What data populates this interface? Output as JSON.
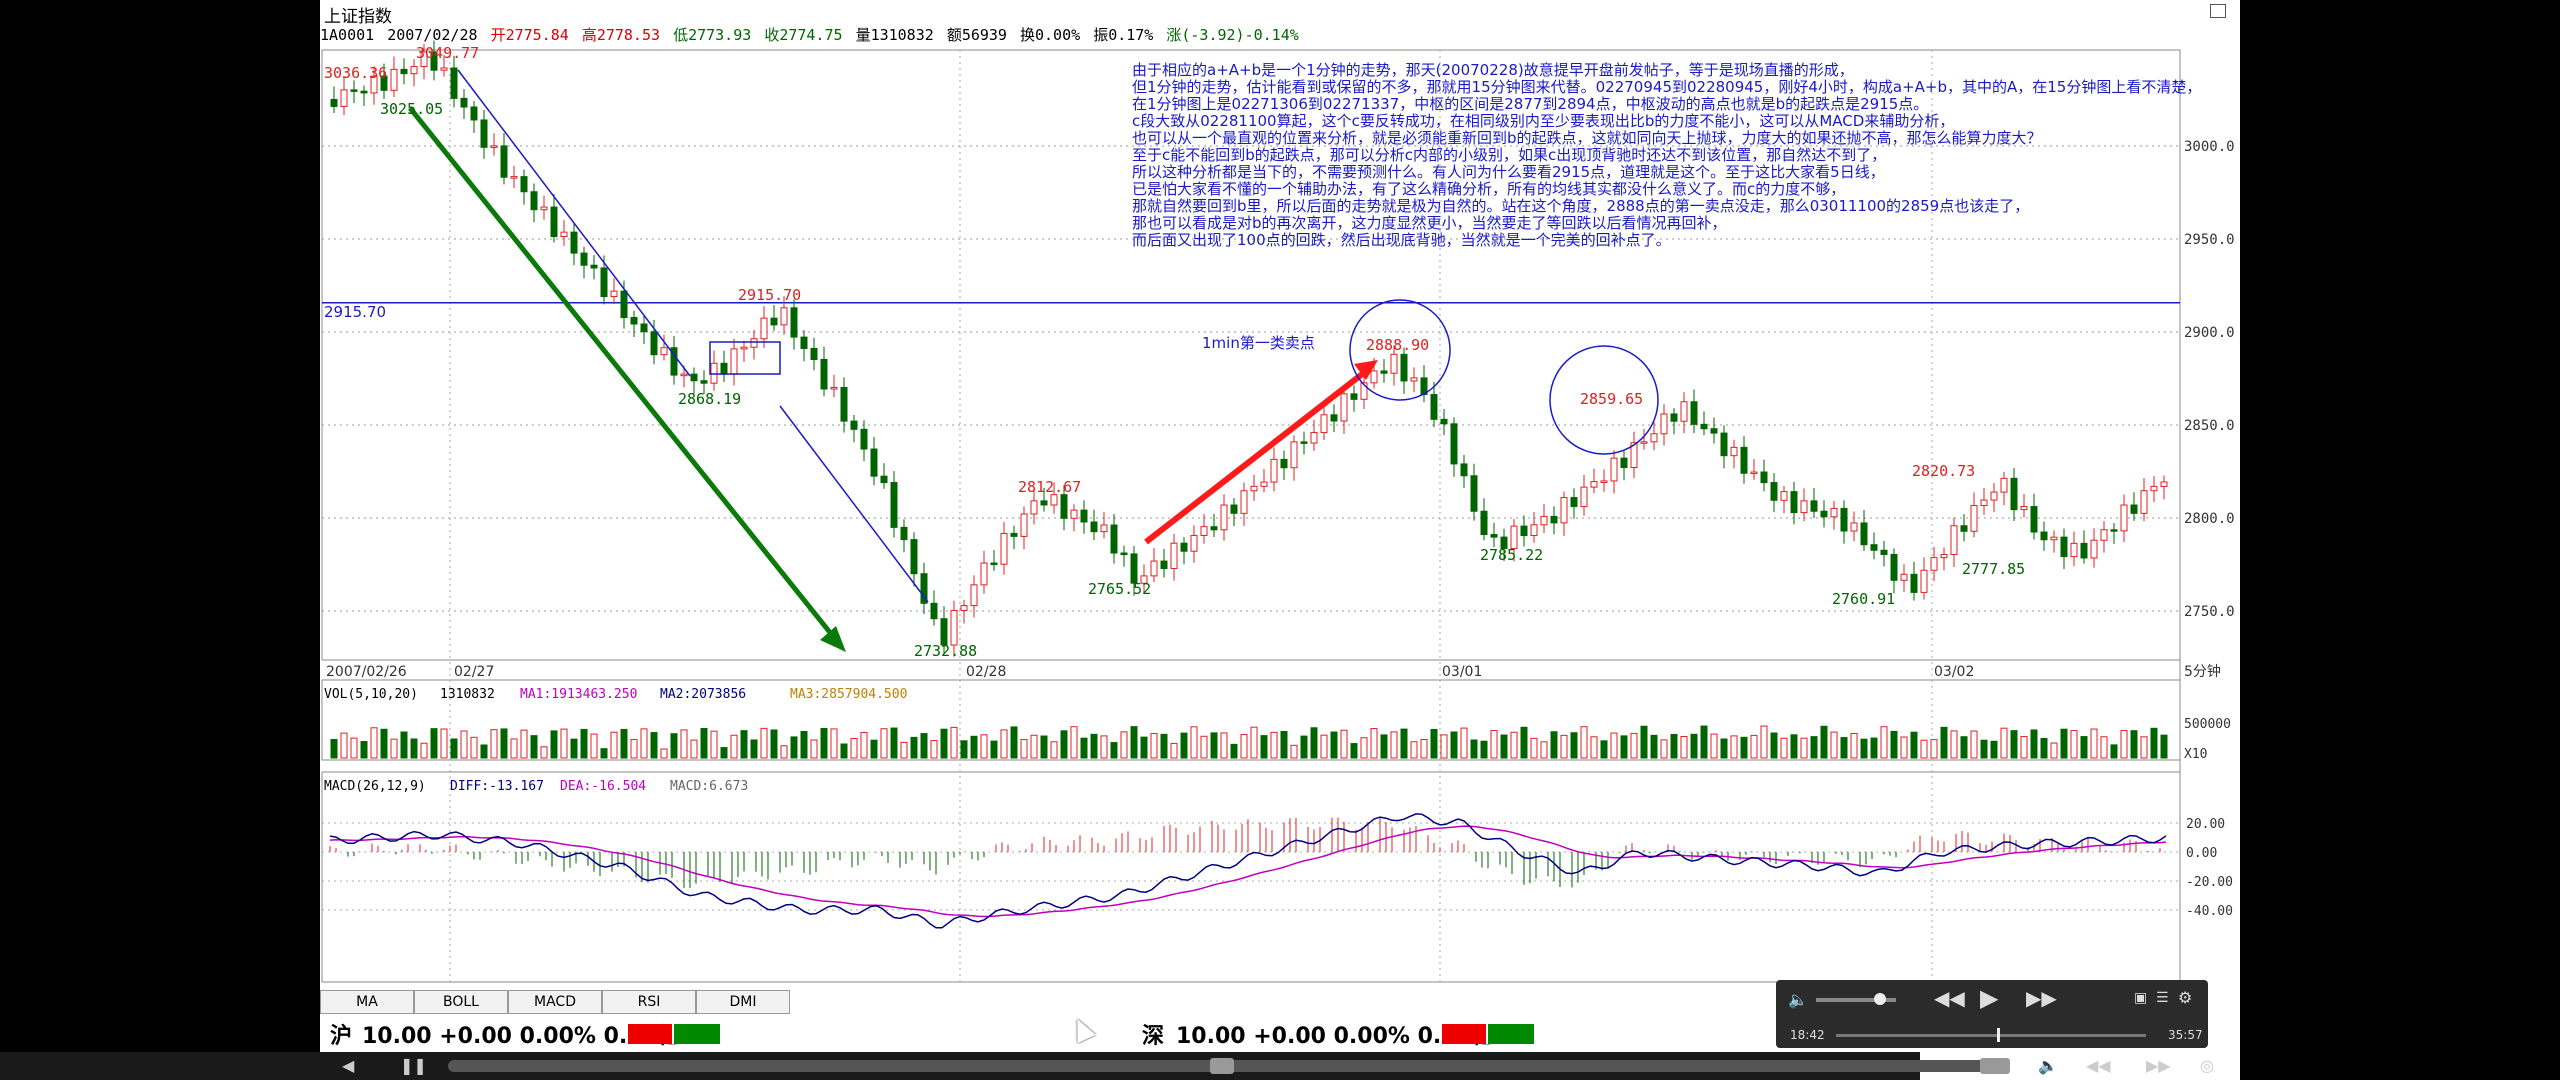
{
  "titlebar": {
    "title": "上证指数"
  },
  "infobar": {
    "code": "1A0001",
    "date": "2007/02/28",
    "open": "开2775.84",
    "high": "高2778.53",
    "low": "低2773.93",
    "close": "收2774.75",
    "volume": "量1310832",
    "amount": "额56939",
    "turnover": "换0.00%",
    "amplitude": "振0.17%",
    "change": "涨(-3.92)-0.14%"
  },
  "annotation_lines": [
    "由于相应的a+A+b是一个1分钟的走势，那天(20070228)故意提早开盘前发帖子，等于是现场直播的形成，",
    "但1分钟的走势，估计能看到或保留的不多，那就用15分钟图来代替。02270945到02280945，刚好4小时，构成a+A+b，其中的A，在15分钟图上看不清楚，",
    "在1分钟图上是02271306到02271337，中枢的区间是2877到2894点，中枢波动的高点也就是b的起跌点是2915点。",
    "c段大致从02281100算起，这个c要反转成功，在相同级别内至少要表现出比b的力度不能小，这可以从MACD来辅助分析，",
    "也可以从一个最直观的位置来分析，就是必须能重新回到b的起跌点，这就如同向天上抛球，力度大的如果还抛不高，那怎么能算力度大？",
    "至于c能不能回到b的起跌点，那可以分析c内部的小级别，如果c出现顶背驰时还达不到该位置，那自然达不到了，",
    "所以这种分析都是当下的，不需要预测什么。有人问为什么要看2915点，道理就是这个。至于这比大家看5日线，",
    "已是怕大家看不懂的一个辅助办法，有了这么精确分析，所有的均线其实都没什么意义了。而c的力度不够，",
    "那就自然要回到b里，所以后面的走势就是极为自然的。站在这个角度，2888点的第一卖点没走，那么03011100的2859点也该走了，",
    "那也可以看成是对b的再次离开，这力度显然更小，当然要走了等回跌以后看情况再回补，",
    "而后面又出现了100点的回跌，然后出现底背驰，当然就是一个完美的回补点了。"
  ],
  "chart_labels": {
    "hline_value": "2915.70",
    "first_sell_label": "1min第一类卖点",
    "p3036": "3036.36",
    "p3049": "3049.77",
    "p3025": "3025.05",
    "p2915": "2915.70",
    "p2868": "2868.19",
    "p2732": "2732.88",
    "p2812": "2812.67",
    "p2765": "2765.52",
    "p2888": "2888.90",
    "p2785": "2785.22",
    "p2859": "2859.65",
    "p2760": "2760.91",
    "p2820": "2820.73",
    "p2777": "2777.85"
  },
  "y_axis_ticks": [
    "3000.0",
    "2950.0",
    "2900.0",
    "2850.0",
    "2800.0",
    "2750.0"
  ],
  "x_axis": {
    "start": "2007/02/26",
    "d1": "02/27",
    "d2": "02/28",
    "d3": "03/01",
    "d4": "03/02",
    "period": "5分钟"
  },
  "volume_panel": {
    "title": "VOL(5,10,20)",
    "vol": "1310832",
    "ma1": "MA1:1913463.250",
    "ma2": "MA2:2073856",
    "ma3": "MA3:2857904.500",
    "tick": "500000",
    "unit": "X10"
  },
  "macd_panel": {
    "title": "MACD(26,12,9)",
    "diff": "DIFF:-13.167",
    "dea": "DEA:-16.504",
    "macd": "MACD:6.673",
    "ticks": [
      "20.00",
      "0.00",
      "-20.00",
      "-40.00"
    ]
  },
  "tabs": [
    "MA",
    "BOLL",
    "MACD",
    "RSI",
    "DMI"
  ],
  "statusbar": {
    "sh_label": "沪",
    "sh_value": "10.00 +0.00 0.00% 0.00亿",
    "sz_label": "深",
    "sz_value": "10.00 +0.00 0.00% 0.00亿"
  },
  "player": {
    "current_time": "18:42",
    "total_time": "35:57"
  },
  "colors": {
    "up": "#e02020",
    "down": "#006400",
    "annotation": "#1a1ac8",
    "ma1": "#c000c0",
    "ma2": "#000080",
    "arrow_red": "#ff1a1a",
    "arrow_green": "#0a7a0a"
  }
}
